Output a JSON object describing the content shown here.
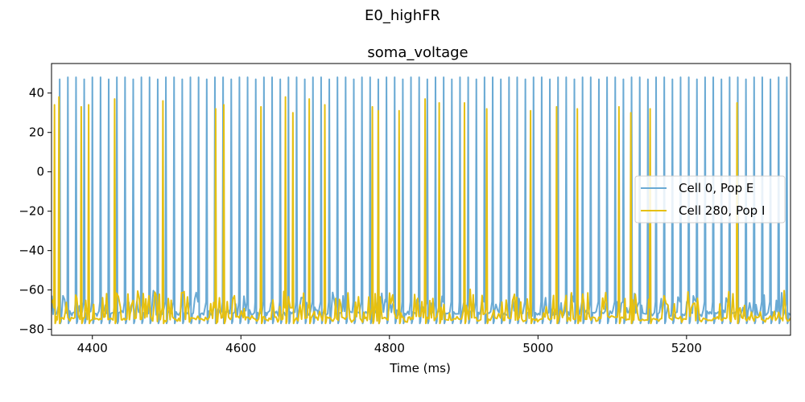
{
  "figure": {
    "suptitle": "E0_highFR"
  },
  "chart_data": {
    "type": "line",
    "title": "soma_voltage",
    "xlabel": "Time (ms)",
    "ylabel": "",
    "xlim": [
      4345,
      5340
    ],
    "ylim": [
      -83,
      55
    ],
    "xticks": [
      4400,
      4600,
      4800,
      5000,
      5200
    ],
    "yticks": [
      40,
      20,
      0,
      -20,
      -40,
      -60,
      -80
    ],
    "grid": false,
    "legend_placement": "center-right",
    "series": [
      {
        "name": "Cell 0, Pop E",
        "color": "#6aaad4",
        "kind": "regular-spiking",
        "spike_times": [
          4356,
          4367,
          4378,
          4389,
          4400,
          4411,
          4422,
          4433,
          4444,
          4455,
          4466,
          4477,
          4488,
          4499,
          4510,
          4521,
          4532,
          4543,
          4554,
          4565,
          4576,
          4587,
          4598,
          4609,
          4620,
          4631,
          4642,
          4653,
          4664,
          4675,
          4686,
          4697,
          4708,
          4719,
          4730,
          4741,
          4752,
          4763,
          4774,
          4785,
          4796,
          4807,
          4818,
          4829,
          4840,
          4851,
          4862,
          4873,
          4884,
          4895,
          4906,
          4917,
          4928,
          4939,
          4950,
          4961,
          4972,
          4983,
          4994,
          5005,
          5016,
          5027,
          5038,
          5049,
          5060,
          5071,
          5082,
          5093,
          5104,
          5115,
          5126,
          5137,
          5148,
          5159,
          5170,
          5181,
          5192,
          5203,
          5214,
          5225,
          5236,
          5247,
          5258,
          5269,
          5280,
          5291,
          5302,
          5313,
          5324,
          5335
        ],
        "spike_peak": 48,
        "rest": -75,
        "trough": -77
      },
      {
        "name": "Cell 280, Pop I",
        "color": "#e6c010",
        "kind": "irregular-spiking",
        "spikes": [
          {
            "t": 4349,
            "v": 34
          },
          {
            "t": 4355,
            "v": 38
          },
          {
            "t": 4385,
            "v": 33
          },
          {
            "t": 4395,
            "v": 34
          },
          {
            "t": 4430,
            "v": 37
          },
          {
            "t": 4495,
            "v": 36
          },
          {
            "t": 4566,
            "v": 32
          },
          {
            "t": 4577,
            "v": 34
          },
          {
            "t": 4627,
            "v": 33
          },
          {
            "t": 4660,
            "v": 38
          },
          {
            "t": 4670,
            "v": 30
          },
          {
            "t": 4692,
            "v": 37
          },
          {
            "t": 4713,
            "v": 34
          },
          {
            "t": 4777,
            "v": 33
          },
          {
            "t": 4785,
            "v": 31
          },
          {
            "t": 4813,
            "v": 31
          },
          {
            "t": 4848,
            "v": 37
          },
          {
            "t": 4867,
            "v": 35
          },
          {
            "t": 4901,
            "v": 35
          },
          {
            "t": 4931,
            "v": 32
          },
          {
            "t": 4990,
            "v": 31
          },
          {
            "t": 5025,
            "v": 33
          },
          {
            "t": 5053,
            "v": 32
          },
          {
            "t": 5109,
            "v": 33
          },
          {
            "t": 5125,
            "v": 30
          },
          {
            "t": 5151,
            "v": 32
          },
          {
            "t": 5268,
            "v": 35
          }
        ],
        "rest": -75,
        "trough": -77
      }
    ]
  }
}
